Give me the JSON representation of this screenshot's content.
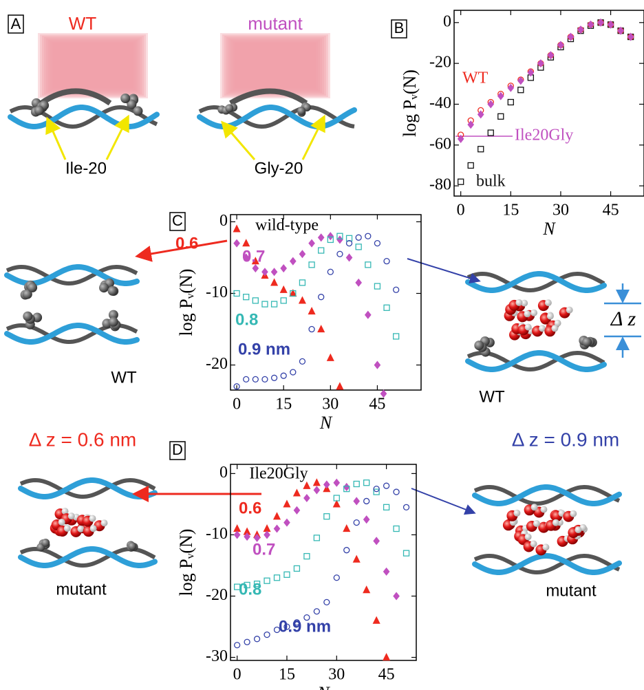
{
  "figure": {
    "panel_a": {
      "label": "A",
      "wt_title": "WT",
      "mutant_title": "mutant",
      "wt_residue": "Ile-20",
      "mutant_residue": "Gly-20"
    },
    "left_wt": "WT",
    "right_wt": "WT",
    "left_mutant": "mutant",
    "right_mutant": "mutant",
    "dz_small": "Δ z = 0.6 nm",
    "dz_large": "Δ z = 0.9 nm",
    "dz_symbol": "Δ z"
  },
  "chart_data": [
    {
      "type": "scatter",
      "panel_label": "B",
      "x_label": "N",
      "y_label": "log Pᵥ(N)",
      "xlim": [
        -2,
        55
      ],
      "ylim": [
        -85,
        6
      ],
      "xticks": [
        0,
        15,
        30,
        45
      ],
      "yticks": [
        0,
        -20,
        -40,
        -60,
        -80
      ],
      "grid": false,
      "series": [
        {
          "name": "bulk",
          "color": "#111111",
          "marker": "square",
          "x": [
            0,
            3,
            6,
            9,
            12,
            15,
            18,
            21,
            24,
            27,
            30,
            33,
            36,
            39,
            42,
            45,
            48,
            51
          ],
          "values": [
            -78,
            -70,
            -62,
            -54,
            -46,
            -39,
            -33,
            -27,
            -22,
            -17,
            -12,
            -8,
            -4,
            -1.5,
            0,
            -1,
            -4,
            -7
          ]
        },
        {
          "name": "WT",
          "color": "#ee2a1f",
          "marker": "circle",
          "x": [
            0,
            3,
            6,
            9,
            12,
            15,
            18,
            21,
            24,
            27,
            30,
            33,
            36,
            39,
            42,
            45,
            48,
            51
          ],
          "values": [
            -55,
            -48,
            -43,
            -39,
            -35,
            -31,
            -28,
            -24,
            -20,
            -16,
            -11,
            -7,
            -3.5,
            -1,
            0,
            -1,
            -4,
            -7
          ]
        },
        {
          "name": "Ile20Gly",
          "color": "#c050c0",
          "marker": "diamond",
          "x": [
            0,
            3,
            6,
            9,
            12,
            15,
            18,
            21,
            24,
            27,
            30,
            33,
            36,
            39,
            42,
            45,
            48,
            51
          ],
          "values": [
            -57,
            -50,
            -45,
            -40,
            -36,
            -32,
            -28.5,
            -24.5,
            -20,
            -16,
            -11,
            -7,
            -3.5,
            -1,
            0,
            -1,
            -4,
            -7
          ]
        }
      ]
    },
    {
      "type": "scatter",
      "panel_label": "C",
      "title": "wild-type",
      "x_label": "N",
      "y_label": "log Pᵥ(N)",
      "xlim": [
        -2,
        59
      ],
      "ylim": [
        -23.5,
        1
      ],
      "xticks": [
        0,
        15,
        30,
        45
      ],
      "yticks": [
        0,
        -10,
        -20
      ],
      "grid": false,
      "series": [
        {
          "name": "0.6",
          "color": "#ee2a1f",
          "marker": "triangle",
          "x": [
            0,
            3,
            6,
            9,
            12,
            15,
            18,
            21,
            24,
            27,
            30,
            33
          ],
          "values": [
            -1,
            -3,
            -5.5,
            -7.5,
            -8.5,
            -9.5,
            -10,
            -11,
            -12.5,
            -15,
            -19,
            -23
          ]
        },
        {
          "name": "0.7",
          "color": "#c050c0",
          "marker": "diamond",
          "x": [
            0,
            3,
            6,
            9,
            12,
            15,
            18,
            21,
            24,
            27,
            30,
            33,
            36,
            39,
            42,
            45,
            47
          ],
          "values": [
            -3,
            -5,
            -6.5,
            -7,
            -7,
            -6.5,
            -5.5,
            -4.5,
            -3,
            -2.2,
            -2,
            -2.5,
            -5,
            -8.5,
            -13,
            -20,
            -24
          ]
        },
        {
          "name": "0.8",
          "color": "#35b8b4",
          "marker": "square",
          "x": [
            0,
            3,
            6,
            9,
            12,
            15,
            18,
            21,
            24,
            27,
            30,
            33,
            36,
            39,
            42,
            45,
            48,
            51
          ],
          "values": [
            -10,
            -10.5,
            -11,
            -11.5,
            -11.5,
            -11,
            -10,
            -8.5,
            -6,
            -4,
            -2.5,
            -2,
            -2.3,
            -3.5,
            -6,
            -9,
            -12,
            -16
          ]
        },
        {
          "name": "0.9 nm",
          "color": "#3341a8",
          "marker": "circle",
          "x": [
            0,
            3,
            6,
            9,
            12,
            15,
            18,
            21,
            24,
            27,
            30,
            33,
            36,
            39,
            42,
            45,
            48,
            51
          ],
          "values": [
            -23,
            -22,
            -22,
            -22,
            -21.8,
            -21.5,
            -21,
            -19.5,
            -15,
            -10.5,
            -7,
            -4.5,
            -3,
            -2.2,
            -2,
            -3,
            -5.5,
            -9.5
          ]
        }
      ]
    },
    {
      "type": "scatter",
      "panel_label": "D",
      "title": "Ile20Gly",
      "x_label": "N",
      "y_label": "log Pᵥ(N)",
      "xlim": [
        -2,
        54
      ],
      "ylim": [
        -30.5,
        1.5
      ],
      "xticks": [
        0,
        15,
        30,
        45
      ],
      "yticks": [
        0,
        -10,
        -20,
        -30
      ],
      "grid": false,
      "series": [
        {
          "name": "0.6",
          "color": "#ee2a1f",
          "marker": "triangle",
          "x": [
            0,
            3,
            6,
            9,
            12,
            15,
            18,
            21,
            24,
            27,
            30,
            33,
            36,
            39,
            42,
            45
          ],
          "values": [
            -9,
            -9.5,
            -10,
            -9,
            -7,
            -5,
            -3.2,
            -2,
            -1.5,
            -2.5,
            -5,
            -9,
            -14,
            -19,
            -24,
            -30
          ]
        },
        {
          "name": "0.7",
          "color": "#c050c0",
          "marker": "diamond",
          "x": [
            0,
            3,
            6,
            9,
            12,
            15,
            18,
            21,
            24,
            27,
            30,
            33,
            36,
            39,
            42,
            45,
            48
          ],
          "values": [
            -10,
            -10.3,
            -10.5,
            -10,
            -9,
            -8,
            -6,
            -4,
            -2.7,
            -1.8,
            -1.5,
            -2.2,
            -4.5,
            -7.5,
            -11,
            -16,
            -20
          ]
        },
        {
          "name": "0.8",
          "color": "#35b8b4",
          "marker": "square",
          "x": [
            0,
            3,
            6,
            9,
            12,
            15,
            18,
            21,
            24,
            27,
            30,
            33,
            36,
            39,
            42,
            45,
            48,
            51
          ],
          "values": [
            -18.5,
            -18.2,
            -18,
            -17.5,
            -17,
            -16.5,
            -15.5,
            -13.5,
            -10.5,
            -7,
            -4,
            -2.5,
            -1.7,
            -1.5,
            -3,
            -5.5,
            -9,
            -13
          ]
        },
        {
          "name": "0.9 nm",
          "color": "#3341a8",
          "marker": "circle",
          "x": [
            0,
            3,
            6,
            9,
            12,
            15,
            18,
            21,
            24,
            27,
            30,
            33,
            36,
            39,
            42,
            45,
            48,
            51
          ],
          "values": [
            -28,
            -27.5,
            -27,
            -26.3,
            -25.5,
            -25,
            -24.3,
            -23.5,
            -22.5,
            -21,
            -17,
            -12.5,
            -8,
            -4.5,
            -2.5,
            -2,
            -3,
            -5.5
          ]
        }
      ]
    }
  ]
}
